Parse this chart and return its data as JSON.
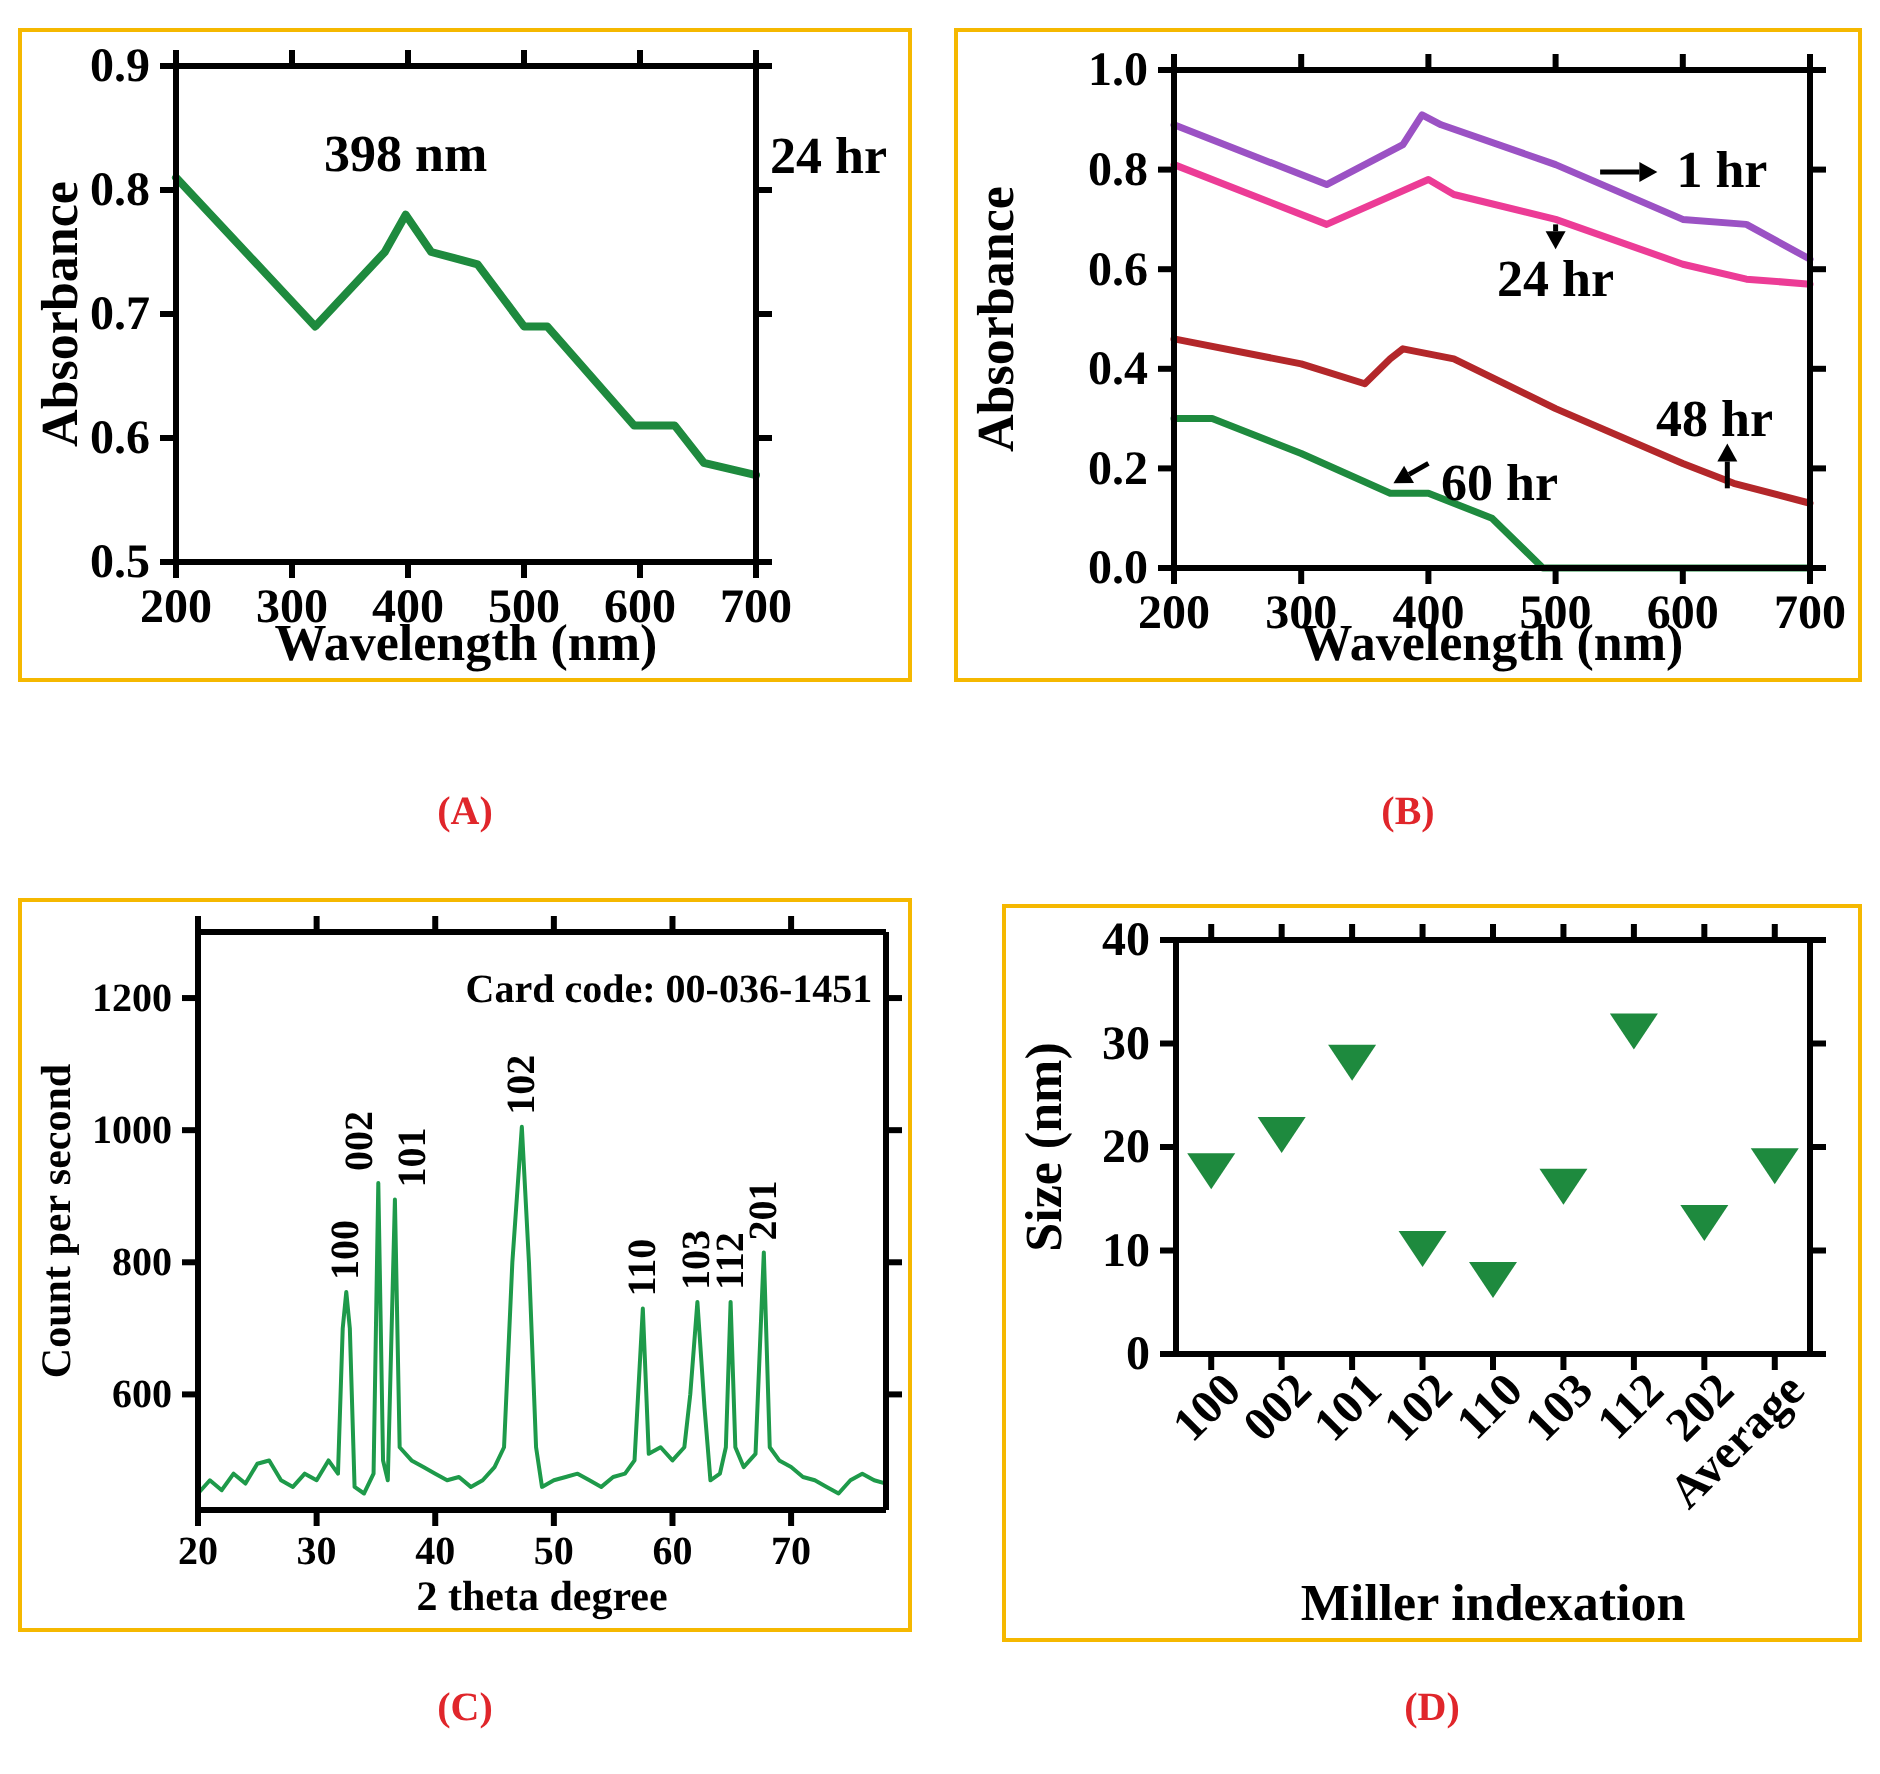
{
  "chart_data": [
    {
      "type": "line",
      "title": "(A)",
      "xlabel": "Wavelength (nm)",
      "ylabel": "Absorbance",
      "xlim": [
        200,
        700
      ],
      "ylim": [
        0.5,
        0.9
      ],
      "xticks": [
        200,
        300,
        400,
        500,
        600,
        700
      ],
      "yticks": [
        0.5,
        0.6,
        0.7,
        0.8,
        0.9
      ],
      "x": [
        200,
        320,
        380,
        398,
        420,
        440,
        460,
        500,
        520,
        595,
        630,
        655,
        700
      ],
      "series": [
        {
          "name": "24 hr",
          "color": "#1e8a3e",
          "values": [
            0.81,
            0.69,
            0.75,
            0.78,
            0.75,
            0.745,
            0.74,
            0.69,
            0.69,
            0.61,
            0.61,
            0.58,
            0.57
          ]
        }
      ],
      "annotations": [
        {
          "text": "398 nm",
          "x": 398,
          "y": 0.78
        }
      ]
    },
    {
      "type": "line",
      "title": "(B)",
      "xlabel": "Wavelength (nm)",
      "ylabel": "Absorbance",
      "xlim": [
        200,
        700
      ],
      "ylim": [
        0,
        1
      ],
      "xticks": [
        200,
        300,
        400,
        500,
        600,
        700
      ],
      "yticks": [
        {
          "value": 0,
          "label": "0.0"
        },
        0.2,
        0.4,
        0.6,
        0.8,
        {
          "value": 1,
          "label": "1.0"
        }
      ],
      "series": [
        {
          "name": "1 hr",
          "color": "#9b52c4",
          "x": [
            200,
            320,
            380,
            395,
            410,
            500,
            600,
            650,
            700
          ],
          "values": [
            0.89,
            0.77,
            0.85,
            0.91,
            0.89,
            0.81,
            0.7,
            0.69,
            0.62
          ]
        },
        {
          "name": "24 hr",
          "color": "#ec3c96",
          "x": [
            200,
            320,
            400,
            420,
            500,
            600,
            650,
            700
          ],
          "values": [
            0.81,
            0.69,
            0.78,
            0.75,
            0.7,
            0.61,
            0.58,
            0.57
          ]
        },
        {
          "name": "48 hr",
          "color": "#b3272a",
          "x": [
            200,
            300,
            350,
            370,
            380,
            420,
            500,
            600,
            640,
            700
          ],
          "values": [
            0.46,
            0.41,
            0.37,
            0.42,
            0.44,
            0.42,
            0.32,
            0.21,
            0.17,
            0.13
          ]
        },
        {
          "name": "60 hr",
          "color": "#1e8a3e",
          "x": [
            200,
            230,
            300,
            370,
            400,
            450,
            490,
            700
          ],
          "values": [
            0.3,
            0.3,
            0.23,
            0.15,
            0.15,
            0.1,
            0,
            0
          ]
        }
      ]
    },
    {
      "type": "line",
      "title": "(C)",
      "xlabel": "2 theta degree",
      "ylabel": "Count per second",
      "xlim": [
        20,
        78
      ],
      "ylim": [
        425,
        1300
      ],
      "xticks": [
        20,
        30,
        40,
        50,
        60,
        70
      ],
      "yticks": [
        600,
        800,
        1000,
        1200
      ],
      "x": [
        20,
        21,
        22,
        23,
        24,
        25,
        26,
        27,
        28,
        29,
        30,
        31,
        31.8,
        32.2,
        32.5,
        32.8,
        33.2,
        34,
        34.8,
        35.2,
        35.6,
        36,
        36.6,
        37,
        38,
        39,
        40,
        41,
        42,
        43,
        44,
        45,
        45.8,
        46.5,
        47.3,
        47.9,
        48.5,
        49,
        50,
        51,
        52,
        53,
        54,
        55,
        56,
        56.8,
        57.5,
        58,
        59,
        60,
        61,
        61.5,
        62.1,
        62.7,
        63.2,
        64,
        64.5,
        64.9,
        65.3,
        66,
        67,
        67.7,
        68.2,
        69,
        70,
        71,
        72,
        73,
        74,
        75,
        76,
        77,
        78
      ],
      "series": [
        {
          "color": "#1e9a4a",
          "values": [
            450,
            470,
            455,
            480,
            465,
            495,
            500,
            470,
            460,
            480,
            470,
            500,
            480,
            700,
            755,
            700,
            460,
            450,
            480,
            920,
            500,
            470,
            895,
            520,
            500,
            490,
            480,
            470,
            475,
            460,
            470,
            490,
            520,
            800,
            1005,
            800,
            520,
            460,
            470,
            475,
            480,
            470,
            460,
            475,
            480,
            500,
            730,
            510,
            520,
            500,
            520,
            600,
            740,
            580,
            470,
            480,
            520,
            740,
            520,
            490,
            510,
            815,
            520,
            500,
            490,
            475,
            470,
            460,
            450,
            470,
            480,
            470,
            465
          ]
        }
      ],
      "annotations": [
        "Card code: 00-036-1451",
        {
          "text": "100",
          "x": 32.5,
          "y": 755
        },
        {
          "text": "002",
          "x": 35.2,
          "y": 920
        },
        {
          "text": "101",
          "x": 36.6,
          "y": 895
        },
        {
          "text": "102",
          "x": 47.3,
          "y": 1005
        },
        {
          "text": "110",
          "x": 57.5,
          "y": 730
        },
        {
          "text": "103",
          "x": 62.1,
          "y": 740
        },
        {
          "text": "112",
          "x": 64.9,
          "y": 740
        },
        {
          "text": "201",
          "x": 67.7,
          "y": 815
        }
      ]
    },
    {
      "type": "scatter",
      "title": "(D)",
      "xlabel": "Miller indexation",
      "ylabel": "Size (nm)",
      "marker": "triangle",
      "ylim": [
        0,
        40
      ],
      "yticks": [
        0,
        10,
        20,
        30,
        40
      ],
      "categories": [
        "100",
        "002",
        "101",
        "102",
        "110",
        "103",
        "112",
        "202",
        "Average"
      ],
      "series": [
        {
          "color": "#1e8a3e",
          "values": [
            18,
            21.5,
            28.5,
            10.5,
            7.5,
            16.5,
            31.5,
            13,
            18.5
          ]
        }
      ]
    }
  ]
}
